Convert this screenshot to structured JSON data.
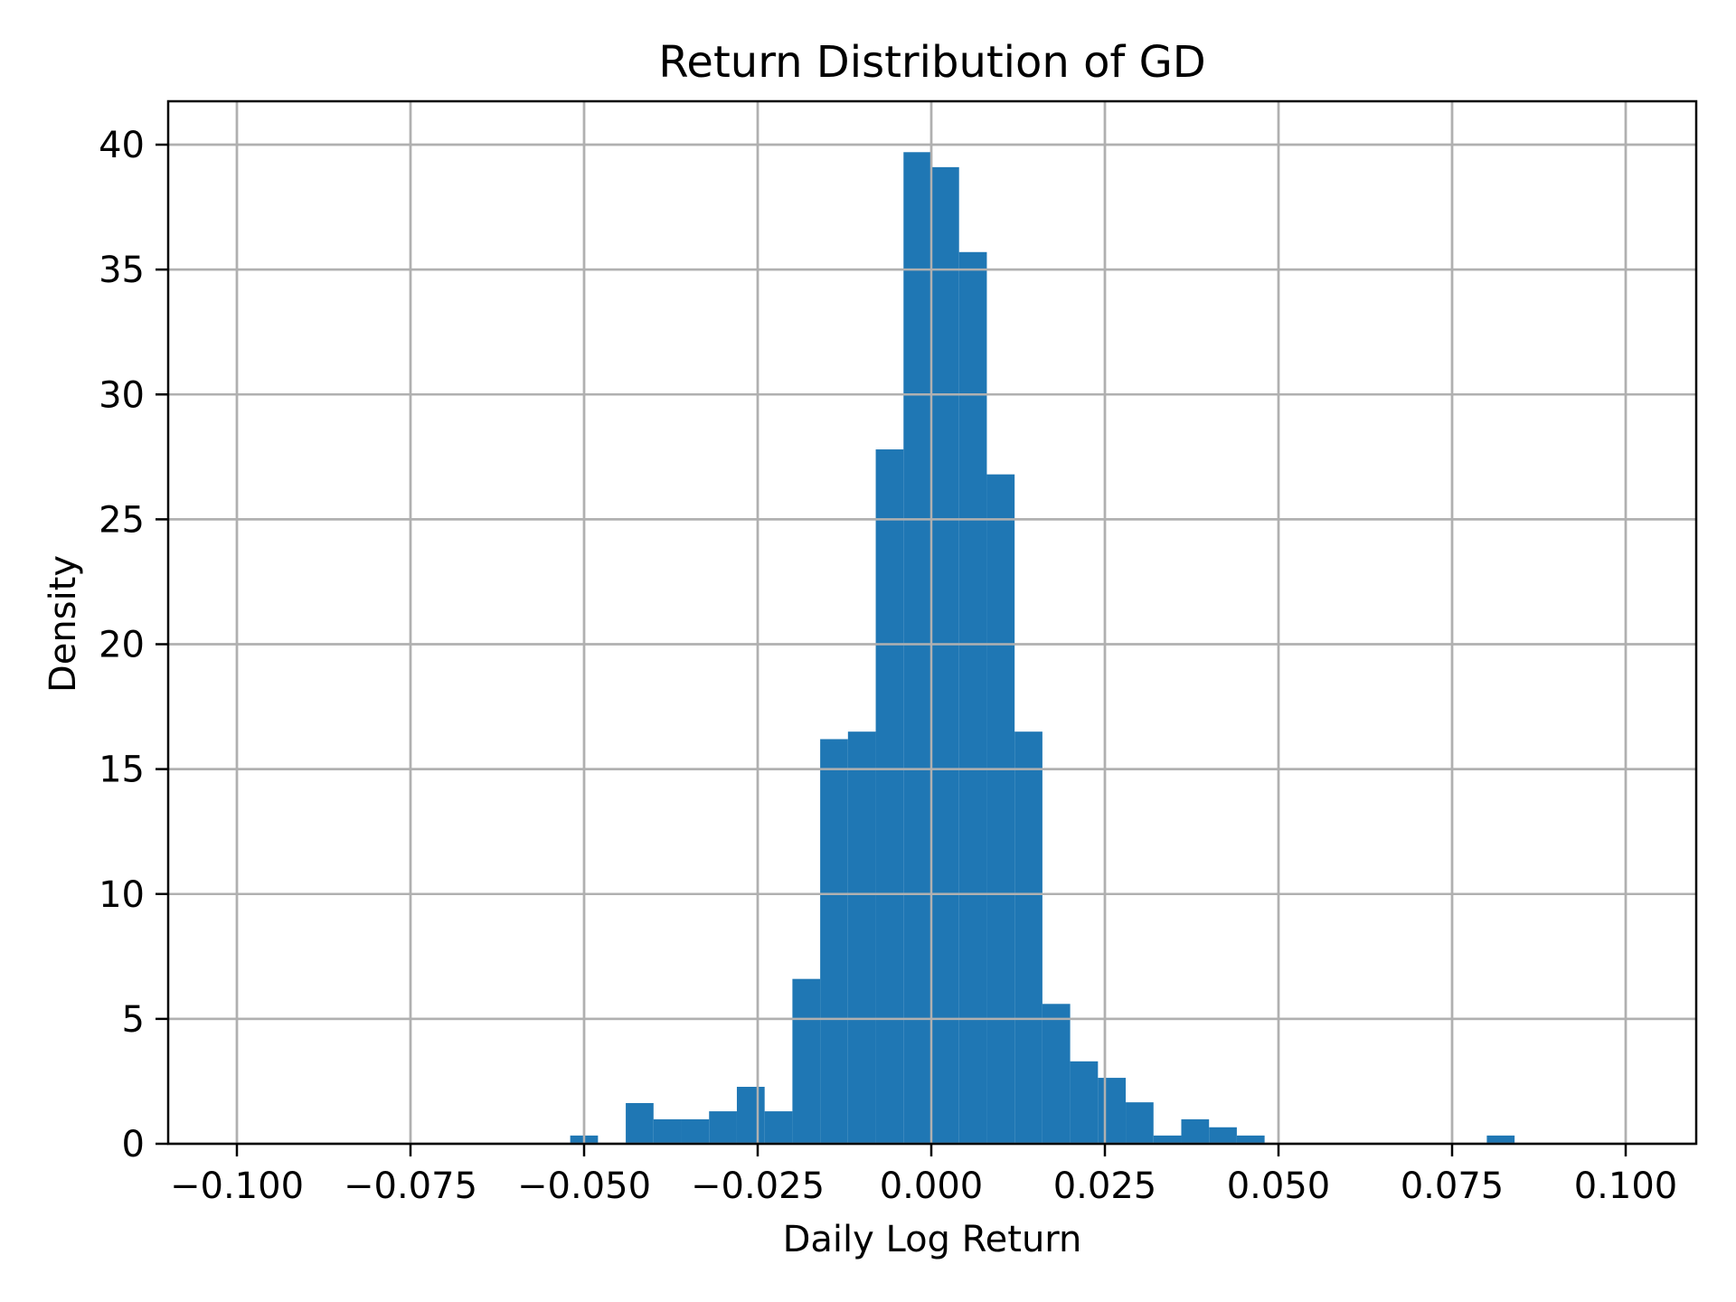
{
  "chart_data": {
    "type": "bar",
    "subtype": "histogram",
    "title": "Return Distribution of GD",
    "xlabel": "Daily Log Return",
    "ylabel": "Density",
    "xlim": [
      -0.108,
      0.11
    ],
    "ylim": [
      0,
      41.8
    ],
    "grid": true,
    "legend": null,
    "bar_color": "#1f77b4",
    "grid_color": "#b0b0b0",
    "x_ticks": [
      -0.1,
      -0.075,
      -0.05,
      -0.025,
      0.0,
      0.025,
      0.05,
      0.075,
      0.1
    ],
    "x_tick_labels": [
      "−0.100",
      "−0.075",
      "−0.050",
      "−0.025",
      "0.000",
      "0.025",
      "0.050",
      "0.075",
      "0.100"
    ],
    "y_ticks": [
      0,
      5,
      10,
      15,
      20,
      25,
      30,
      35,
      40
    ],
    "y_tick_labels": [
      "0",
      "5",
      "10",
      "15",
      "20",
      "25",
      "30",
      "35",
      "40"
    ],
    "bin_start": -0.052,
    "bin_width": 0.004,
    "bin_edges_note": "34 equal-width bins from -0.052 to 0.084",
    "categories": [
      "-0.052",
      "-0.048",
      "-0.044",
      "-0.040",
      "-0.036",
      "-0.032",
      "-0.028",
      "-0.024",
      "-0.020",
      "-0.016",
      "-0.012",
      "-0.008",
      "-0.004",
      "0.000",
      "0.004",
      "0.008",
      "0.012",
      "0.016",
      "0.020",
      "0.024",
      "0.028",
      "0.032",
      "0.036",
      "0.040",
      "0.044",
      "0.048",
      "0.052",
      "0.056",
      "0.060",
      "0.064",
      "0.068",
      "0.072",
      "0.076",
      "0.080"
    ],
    "values": [
      0.33,
      0,
      1.63,
      0.98,
      0.98,
      1.3,
      2.28,
      1.3,
      6.6,
      16.2,
      16.5,
      27.8,
      39.7,
      39.1,
      35.7,
      26.8,
      16.5,
      5.6,
      3.3,
      2.64,
      1.66,
      0.33,
      0.98,
      0.66,
      0.33,
      0,
      0,
      0,
      0,
      0,
      0,
      0,
      0,
      0.33
    ]
  }
}
